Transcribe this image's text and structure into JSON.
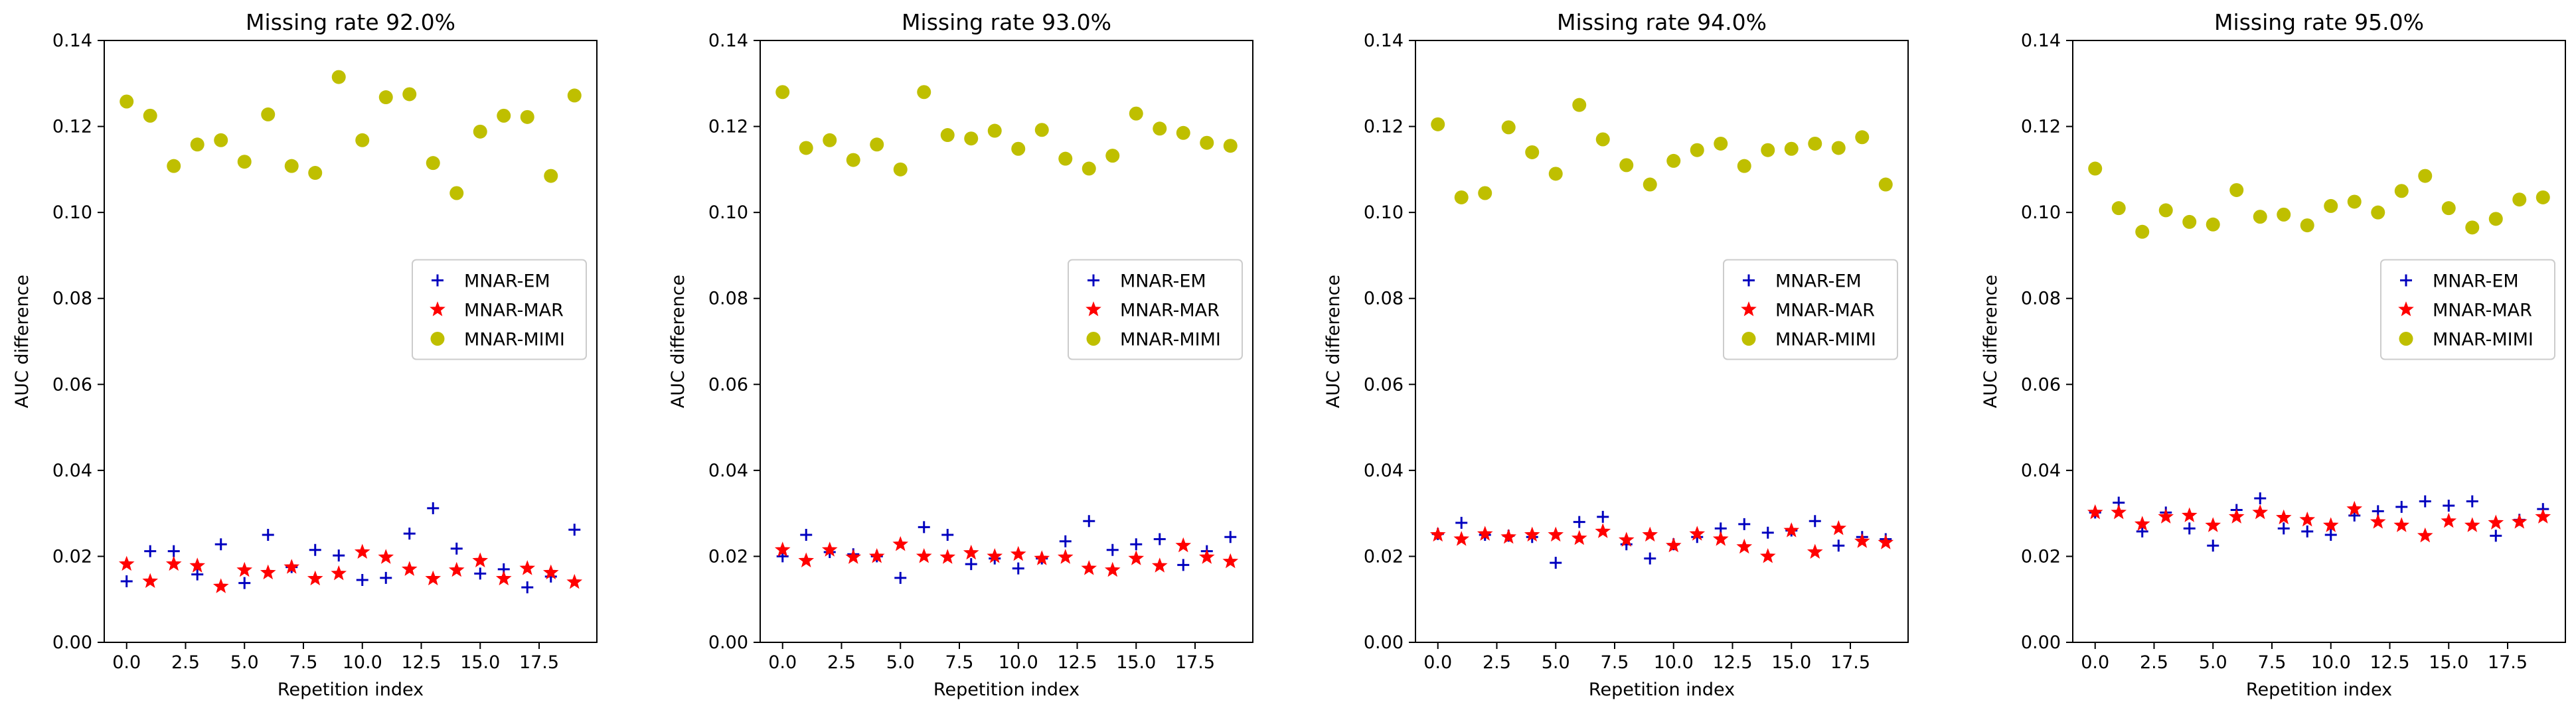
{
  "chart_data": [
    {
      "type": "scatter",
      "title": "Missing rate 92.0%",
      "xlabel": "Repetition index",
      "ylabel": "AUC difference",
      "xlim": [
        -0.95,
        19.95
      ],
      "ylim": [
        0.0,
        0.14
      ],
      "xticks": [
        0.0,
        2.5,
        5.0,
        7.5,
        10.0,
        12.5,
        15.0,
        17.5
      ],
      "xtick_labels": [
        "0.0",
        "2.5",
        "5.0",
        "7.5",
        "10.0",
        "12.5",
        "15.0",
        "17.5"
      ],
      "yticks": [
        0.0,
        0.02,
        0.04,
        0.06,
        0.08,
        0.1,
        0.12,
        0.14
      ],
      "ytick_labels": [
        "0.00",
        "0.02",
        "0.04",
        "0.06",
        "0.08",
        "0.10",
        "0.12",
        "0.14"
      ],
      "legend_position": "center-right",
      "x": [
        0,
        1,
        2,
        3,
        4,
        5,
        6,
        7,
        8,
        9,
        10,
        11,
        12,
        13,
        14,
        15,
        16,
        17,
        18,
        19
      ],
      "series": [
        {
          "name": "MNAR-EM",
          "marker": "plus",
          "color": "#0000bf",
          "values": [
            0.0142,
            0.0212,
            0.0212,
            0.0158,
            0.0228,
            0.0138,
            0.025,
            0.0175,
            0.0215,
            0.0202,
            0.0145,
            0.015,
            0.0253,
            0.0312,
            0.0218,
            0.016,
            0.017,
            0.0128,
            0.0153,
            0.0262
          ]
        },
        {
          "name": "MNAR-MAR",
          "marker": "star",
          "color": "#ff0000",
          "values": [
            0.0182,
            0.0142,
            0.0182,
            0.0178,
            0.013,
            0.0168,
            0.0162,
            0.0175,
            0.0148,
            0.016,
            0.021,
            0.0198,
            0.017,
            0.0148,
            0.0168,
            0.019,
            0.0148,
            0.0172,
            0.0162,
            0.014
          ]
        },
        {
          "name": "MNAR-MIMI",
          "marker": "circle",
          "color": "#bfbf00",
          "values": [
            0.1258,
            0.1225,
            0.1108,
            0.1158,
            0.1168,
            0.1118,
            0.1228,
            0.1108,
            0.1092,
            0.1315,
            0.1168,
            0.1268,
            0.1275,
            0.1115,
            0.1045,
            0.1188,
            0.1225,
            0.1222,
            0.1085,
            0.1272
          ]
        }
      ]
    },
    {
      "type": "scatter",
      "title": "Missing rate 93.0%",
      "xlabel": "Repetition index",
      "ylabel": "AUC difference",
      "xlim": [
        -0.95,
        19.95
      ],
      "ylim": [
        0.0,
        0.14
      ],
      "xticks": [
        0.0,
        2.5,
        5.0,
        7.5,
        10.0,
        12.5,
        15.0,
        17.5
      ],
      "xtick_labels": [
        "0.0",
        "2.5",
        "5.0",
        "7.5",
        "10.0",
        "12.5",
        "15.0",
        "17.5"
      ],
      "yticks": [
        0.0,
        0.02,
        0.04,
        0.06,
        0.08,
        0.1,
        0.12,
        0.14
      ],
      "ytick_labels": [
        "0.00",
        "0.02",
        "0.04",
        "0.06",
        "0.08",
        "0.10",
        "0.12",
        "0.14"
      ],
      "legend_position": "center-right",
      "x": [
        0,
        1,
        2,
        3,
        4,
        5,
        6,
        7,
        8,
        9,
        10,
        11,
        12,
        13,
        14,
        15,
        16,
        17,
        18,
        19
      ],
      "series": [
        {
          "name": "MNAR-EM",
          "marker": "plus",
          "color": "#0000bf",
          "values": [
            0.02,
            0.025,
            0.021,
            0.0205,
            0.02,
            0.015,
            0.0268,
            0.025,
            0.0182,
            0.0195,
            0.0172,
            0.0195,
            0.0235,
            0.0282,
            0.0215,
            0.0228,
            0.024,
            0.018,
            0.0212,
            0.0245
          ]
        },
        {
          "name": "MNAR-MAR",
          "marker": "star",
          "color": "#ff0000",
          "values": [
            0.0215,
            0.019,
            0.0215,
            0.0198,
            0.02,
            0.0228,
            0.02,
            0.0198,
            0.0208,
            0.02,
            0.0205,
            0.0195,
            0.0198,
            0.0172,
            0.0168,
            0.0195,
            0.0178,
            0.0225,
            0.0198,
            0.0188
          ]
        },
        {
          "name": "MNAR-MIMI",
          "marker": "circle",
          "color": "#bfbf00",
          "values": [
            0.128,
            0.115,
            0.1168,
            0.1122,
            0.1158,
            0.11,
            0.128,
            0.118,
            0.1172,
            0.119,
            0.1148,
            0.1192,
            0.1125,
            0.1102,
            0.1132,
            0.123,
            0.1195,
            0.1185,
            0.1162,
            0.1155
          ]
        }
      ]
    },
    {
      "type": "scatter",
      "title": "Missing rate 94.0%",
      "xlabel": "Repetition index",
      "ylabel": "AUC difference",
      "xlim": [
        -0.95,
        19.95
      ],
      "ylim": [
        0.0,
        0.14
      ],
      "xticks": [
        0.0,
        2.5,
        5.0,
        7.5,
        10.0,
        12.5,
        15.0,
        17.5
      ],
      "xtick_labels": [
        "0.0",
        "2.5",
        "5.0",
        "7.5",
        "10.0",
        "12.5",
        "15.0",
        "17.5"
      ],
      "yticks": [
        0.0,
        0.02,
        0.04,
        0.06,
        0.08,
        0.1,
        0.12,
        0.14
      ],
      "ytick_labels": [
        "0.00",
        "0.02",
        "0.04",
        "0.06",
        "0.08",
        "0.10",
        "0.12",
        "0.14"
      ],
      "legend_position": "center-right",
      "x": [
        0,
        1,
        2,
        3,
        4,
        5,
        6,
        7,
        8,
        9,
        10,
        11,
        12,
        13,
        14,
        15,
        16,
        17,
        18,
        19
      ],
      "series": [
        {
          "name": "MNAR-EM",
          "marker": "plus",
          "color": "#0000bf",
          "values": [
            0.0252,
            0.0278,
            0.025,
            0.0248,
            0.0245,
            0.0185,
            0.028,
            0.0292,
            0.0228,
            0.0195,
            0.0228,
            0.0245,
            0.0265,
            0.0275,
            0.0255,
            0.026,
            0.0282,
            0.0225,
            0.0245,
            0.024
          ]
        },
        {
          "name": "MNAR-MAR",
          "marker": "star",
          "color": "#ff0000",
          "values": [
            0.025,
            0.024,
            0.0252,
            0.0245,
            0.025,
            0.025,
            0.0242,
            0.0258,
            0.0238,
            0.025,
            0.0225,
            0.0252,
            0.024,
            0.0222,
            0.02,
            0.026,
            0.021,
            0.0265,
            0.0235,
            0.0232
          ]
        },
        {
          "name": "MNAR-MIMI",
          "marker": "circle",
          "color": "#bfbf00",
          "values": [
            0.1205,
            0.1035,
            0.1045,
            0.1198,
            0.114,
            0.109,
            0.125,
            0.117,
            0.111,
            0.1065,
            0.112,
            0.1145,
            0.116,
            0.1108,
            0.1145,
            0.1148,
            0.116,
            0.115,
            0.1175,
            0.1065
          ]
        }
      ]
    },
    {
      "type": "scatter",
      "title": "Missing rate 95.0%",
      "xlabel": "Repetition index",
      "ylabel": "AUC difference",
      "xlim": [
        -0.95,
        19.95
      ],
      "ylim": [
        0.0,
        0.14
      ],
      "xticks": [
        0.0,
        2.5,
        5.0,
        7.5,
        10.0,
        12.5,
        15.0,
        17.5
      ],
      "xtick_labels": [
        "0.0",
        "2.5",
        "5.0",
        "7.5",
        "10.0",
        "12.5",
        "15.0",
        "17.5"
      ],
      "yticks": [
        0.0,
        0.02,
        0.04,
        0.06,
        0.08,
        0.1,
        0.12,
        0.14
      ],
      "ytick_labels": [
        "0.00",
        "0.02",
        "0.04",
        "0.06",
        "0.08",
        "0.10",
        "0.12",
        "0.14"
      ],
      "legend_position": "center-right",
      "x": [
        0,
        1,
        2,
        3,
        4,
        5,
        6,
        7,
        8,
        9,
        10,
        11,
        12,
        13,
        14,
        15,
        16,
        17,
        18,
        19
      ],
      "series": [
        {
          "name": "MNAR-EM",
          "marker": "plus",
          "color": "#0000bf",
          "values": [
            0.0302,
            0.0325,
            0.0258,
            0.0302,
            0.0265,
            0.0225,
            0.0308,
            0.0335,
            0.0265,
            0.0258,
            0.025,
            0.0295,
            0.0305,
            0.0315,
            0.0328,
            0.0318,
            0.0328,
            0.0248,
            0.0285,
            0.031
          ]
        },
        {
          "name": "MNAR-MAR",
          "marker": "star",
          "color": "#ff0000",
          "values": [
            0.0302,
            0.0302,
            0.0275,
            0.0292,
            0.0295,
            0.0272,
            0.0292,
            0.0302,
            0.029,
            0.0285,
            0.0272,
            0.031,
            0.028,
            0.0272,
            0.0248,
            0.0282,
            0.0272,
            0.0278,
            0.028,
            0.0292
          ]
        },
        {
          "name": "MNAR-MIMI",
          "marker": "circle",
          "color": "#bfbf00",
          "values": [
            0.1102,
            0.101,
            0.0955,
            0.1005,
            0.0978,
            0.0972,
            0.1052,
            0.099,
            0.0995,
            0.097,
            0.1015,
            0.1025,
            0.1,
            0.105,
            0.1085,
            0.101,
            0.0965,
            0.0985,
            0.103,
            0.1035
          ]
        }
      ]
    }
  ]
}
